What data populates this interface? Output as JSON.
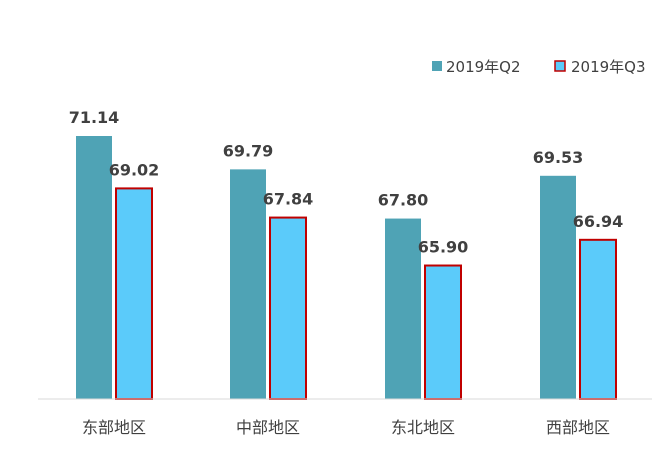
{
  "chart_data": {
    "type": "bar",
    "categories": [
      "东部地区",
      "中部地区",
      "东北地区",
      "西部地区"
    ],
    "series": [
      {
        "name": "2019年Q2",
        "values": [
          71.14,
          69.79,
          67.8,
          69.53
        ],
        "color": "#4FA3B5"
      },
      {
        "name": "2019年Q3",
        "values": [
          69.02,
          67.84,
          65.9,
          66.94
        ],
        "color": "#5BCBFA",
        "stroke": "#C00000"
      }
    ],
    "title": "",
    "xlabel": "",
    "ylabel": "",
    "ylim": [
      60.5,
      71.14
    ],
    "grid": false,
    "legend": "top-right",
    "value_labels": true
  }
}
